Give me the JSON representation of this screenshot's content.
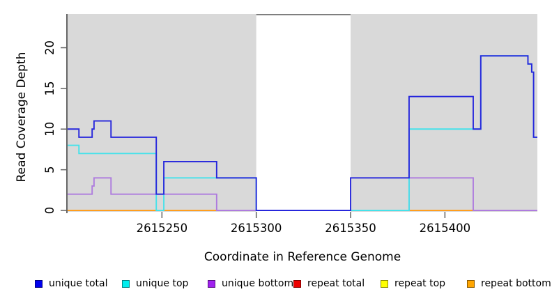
{
  "chart_data": {
    "type": "line",
    "step": "post",
    "title": "",
    "xlabel": "Coordinate in Reference Genome",
    "ylabel": "Read Coverage Depth",
    "xlim": [
      2615200,
      2615449
    ],
    "ylim": [
      0,
      24
    ],
    "xticks": [
      2615250,
      2615300,
      2615350,
      2615400
    ],
    "yticks": [
      0,
      5,
      10,
      15,
      20
    ],
    "grid": false,
    "panel_color": "#D9D9D9",
    "highlight_region": {
      "from": 2615300,
      "to": 2615350,
      "color": "#FFFFFF",
      "top_border_color": "#7F7F7F"
    },
    "legend_position": "bottom",
    "series": [
      {
        "name": "unique total",
        "line_color": "#2626DC",
        "swatch_color": "#0000EE",
        "z": 6,
        "points": [
          [
            2615200,
            10
          ],
          [
            2615206,
            9
          ],
          [
            2615213,
            10
          ],
          [
            2615214,
            11
          ],
          [
            2615223,
            9
          ],
          [
            2615247,
            2
          ],
          [
            2615251,
            6
          ],
          [
            2615279,
            4
          ],
          [
            2615300,
            0
          ],
          [
            2615350,
            4
          ],
          [
            2615381,
            14
          ],
          [
            2615415,
            10
          ],
          [
            2615419,
            19
          ],
          [
            2615444,
            18
          ],
          [
            2615446,
            17
          ],
          [
            2615447,
            9
          ],
          [
            2615449,
            9
          ]
        ]
      },
      {
        "name": "unique top",
        "line_color": "#45E2EA",
        "swatch_color": "#00EEEE",
        "z": 5,
        "points": [
          [
            2615200,
            8
          ],
          [
            2615206,
            7
          ],
          [
            2615247,
            0
          ],
          [
            2615251,
            4
          ],
          [
            2615300,
            0
          ],
          [
            2615381,
            10
          ],
          [
            2615419,
            19
          ],
          [
            2615444,
            18
          ],
          [
            2615446,
            17
          ],
          [
            2615447,
            9
          ],
          [
            2615449,
            9
          ]
        ]
      },
      {
        "name": "unique bottom",
        "line_color": "#AE7BDE",
        "swatch_color": "#A021EF",
        "z": 4,
        "points": [
          [
            2615200,
            2
          ],
          [
            2615213,
            3
          ],
          [
            2615214,
            4
          ],
          [
            2615223,
            2
          ],
          [
            2615279,
            0
          ],
          [
            2615381,
            4
          ],
          [
            2615415,
            0
          ],
          [
            2615449,
            0
          ]
        ]
      },
      {
        "name": "repeat total",
        "line_color": "#DD2A2A",
        "swatch_color": "#EE0000",
        "z": 1,
        "points": [
          [
            2615200,
            0
          ],
          [
            2615449,
            0
          ]
        ]
      },
      {
        "name": "repeat top",
        "line_color": "#EEEE33",
        "swatch_color": "#FFFF00",
        "z": 2,
        "points": [
          [
            2615200,
            0
          ],
          [
            2615449,
            0
          ]
        ]
      },
      {
        "name": "repeat bottom",
        "line_color": "#FF9E1E",
        "swatch_color": "#FFA500",
        "z": 3,
        "points": [
          [
            2615200,
            0
          ],
          [
            2615449,
            0
          ]
        ]
      }
    ]
  }
}
